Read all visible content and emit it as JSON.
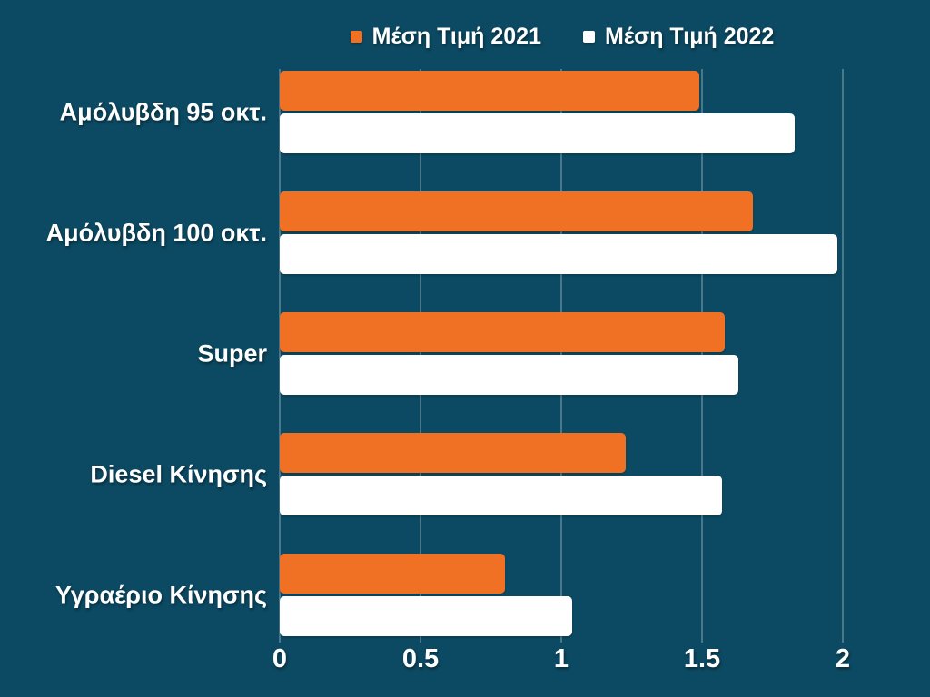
{
  "chart": {
    "colors": {
      "background": "#0c4a63",
      "bar_2021": "#f07124",
      "bar_2022": "#ffffff",
      "text": "#ffffff",
      "gridline": "rgba(255,255,255,0.26)"
    }
  },
  "chart_data": {
    "type": "bar",
    "orientation": "horizontal",
    "title": "",
    "xlabel": "",
    "ylabel": "",
    "categories": [
      "Αμόλυβδη 95 οκτ.",
      "Αμόλυβδη 100 οκτ.",
      "Super",
      "Diesel Κίνησης",
      "Υγραέριο Κίνησης"
    ],
    "series": [
      {
        "name": "Μέση Τιμή 2021",
        "color": "#f07124",
        "values": [
          1.49,
          1.68,
          1.58,
          1.23,
          0.8
        ]
      },
      {
        "name": "Μέση Τιμή 2022",
        "color": "#ffffff",
        "values": [
          1.83,
          1.98,
          1.63,
          1.57,
          1.04
        ]
      }
    ],
    "xlim": [
      0,
      2
    ],
    "xticks": [
      0,
      0.5,
      1,
      1.5,
      2
    ],
    "xtick_labels": [
      "0",
      "0.5",
      "1",
      "1.5",
      "2"
    ],
    "grid": true,
    "legend_position": "top-center"
  }
}
